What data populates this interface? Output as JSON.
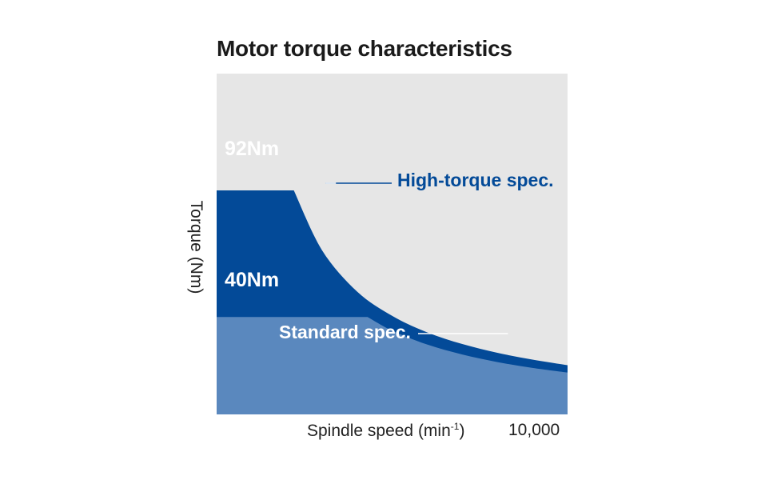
{
  "chart_data": {
    "type": "area",
    "title": "Motor torque characteristics",
    "xlabel": "Spindle speed (min",
    "xlabel_sup": "-1",
    "xlabel_close": ")",
    "ylabel": "Torque (Nm)",
    "x_tick_max": "10,000",
    "xlim": [
      0,
      10000
    ],
    "ylim": [
      0,
      140
    ],
    "grid": false,
    "series": [
      {
        "name": "High-torque spec.",
        "value_label": "92Nm",
        "color": "#034a98",
        "x": [
          0,
          2200,
          3000,
          4000,
          5000,
          6000,
          7000,
          8000,
          9000,
          10000
        ],
        "y": [
          92,
          92,
          67.5,
          50.5,
          40.5,
          33.7,
          28.9,
          25.3,
          22.5,
          20.2
        ]
      },
      {
        "name": "Standard spec.",
        "value_label": "40Nm",
        "color": "#5a88be",
        "x": [
          0,
          4300,
          5000,
          6000,
          7000,
          8000,
          9000,
          10000
        ],
        "y": [
          40,
          40,
          34.4,
          28.7,
          24.6,
          21.5,
          19.1,
          17.2
        ]
      }
    ],
    "background_color": "#e6e6e6",
    "leader_color": "#ffffff"
  }
}
